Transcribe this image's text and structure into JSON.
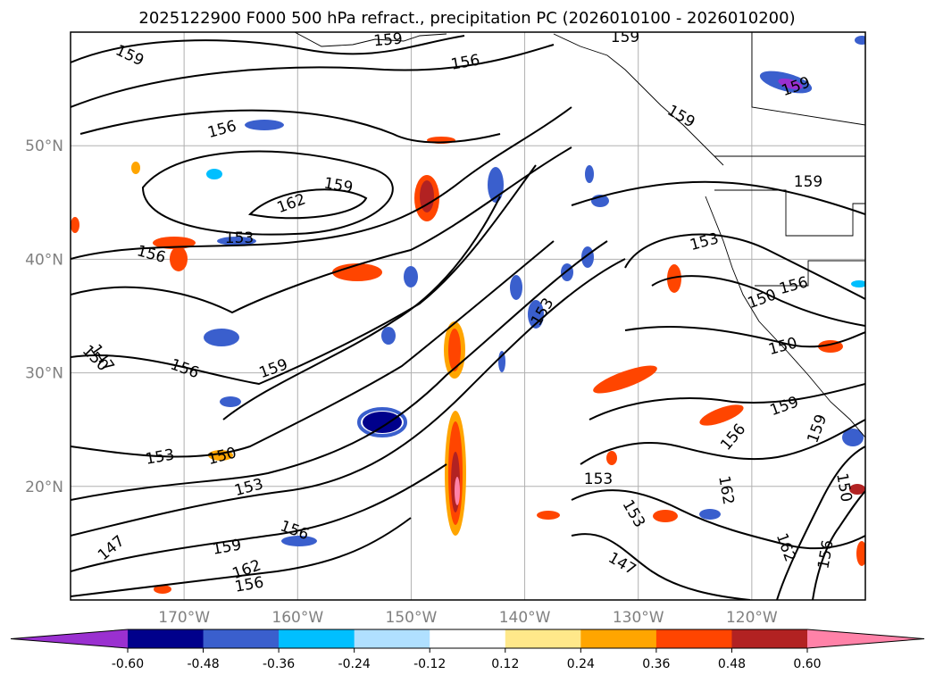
{
  "title": "2025122900 F000 500 hPa refract., precipitation PC (2026010100 - 2026010200)",
  "map": {
    "lat_labels": [
      "50°N",
      "40°N",
      "30°N",
      "20°N"
    ],
    "lon_labels": [
      "170°W",
      "160°W",
      "150°W",
      "140°W",
      "130°W",
      "120°W"
    ],
    "lat_values": [
      50,
      40,
      30,
      20
    ],
    "lon_values": [
      -170,
      -160,
      -150,
      -140,
      -130,
      -120
    ],
    "extent": {
      "lon_min": -180,
      "lon_max": -110,
      "lat_min": 10,
      "lat_max": 60
    },
    "grid_color": "#b0b0b0"
  },
  "contour_labels": [
    {
      "text": "159"
    },
    {
      "text": "159"
    },
    {
      "text": "156"
    },
    {
      "text": "159"
    },
    {
      "text": "156"
    },
    {
      "text": "159"
    },
    {
      "text": "159"
    },
    {
      "text": "162"
    },
    {
      "text": "159"
    },
    {
      "text": "153"
    },
    {
      "text": "156"
    },
    {
      "text": "153"
    },
    {
      "text": "159"
    },
    {
      "text": "150"
    },
    {
      "text": "156"
    },
    {
      "text": "159"
    },
    {
      "text": "150"
    },
    {
      "text": "159"
    },
    {
      "text": "150"
    },
    {
      "text": "153"
    },
    {
      "text": "153"
    },
    {
      "text": "159"
    },
    {
      "text": "150"
    },
    {
      "text": "156"
    },
    {
      "text": "153"
    },
    {
      "text": "147"
    },
    {
      "text": "159"
    },
    {
      "text": "156"
    },
    {
      "text": "147"
    },
    {
      "text": "153"
    },
    {
      "text": "162"
    },
    {
      "text": "156"
    },
    {
      "text": "153"
    },
    {
      "text": "150"
    },
    {
      "text": "156"
    },
    {
      "text": "162"
    },
    {
      "text": "147"
    },
    {
      "text": "156"
    },
    {
      "text": "162"
    }
  ],
  "colorbar": {
    "ticks": [
      "-0.60",
      "-0.48",
      "-0.36",
      "-0.24",
      "-0.12",
      "0.12",
      "0.24",
      "0.36",
      "0.48",
      "0.60"
    ],
    "colors": [
      "#9a30d0",
      "#00008b",
      "#3a5fcd",
      "#00bfff",
      "#b0e0ff",
      "#ffffff",
      "#ffe88a",
      "#ffa500",
      "#ff4500",
      "#b22222",
      "#ff82a8"
    ]
  }
}
